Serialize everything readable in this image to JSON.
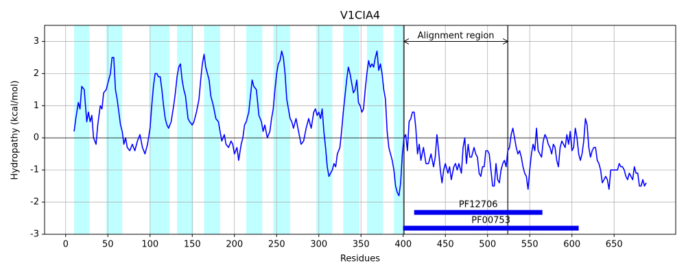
{
  "chart_data": {
    "type": "line",
    "title": "V1CIA4",
    "xlabel": "Residues",
    "ylabel": "Hydropathy (kcal/mol)",
    "x": [
      10,
      12,
      15,
      17,
      19,
      22,
      25,
      27,
      29,
      31,
      33,
      36,
      38,
      41,
      43,
      45,
      48,
      50,
      53,
      55,
      57,
      59,
      61,
      63,
      65,
      67,
      69,
      71,
      73,
      76,
      79,
      82,
      85,
      88,
      91,
      94,
      97,
      100,
      102,
      104,
      106,
      108,
      110,
      112,
      114,
      116,
      118,
      120,
      122,
      125,
      128,
      130,
      132,
      134,
      136,
      138,
      140,
      142,
      145,
      147,
      150,
      152,
      155,
      158,
      160,
      162,
      164,
      166,
      168,
      170,
      172,
      175,
      178,
      181,
      183,
      185,
      188,
      190,
      193,
      196,
      198,
      200,
      203,
      205,
      208,
      210,
      212,
      214,
      217,
      219,
      221,
      223,
      226,
      229,
      232,
      234,
      236,
      239,
      242,
      244,
      246,
      248,
      250,
      252,
      254,
      256,
      258,
      260,
      262,
      264,
      266,
      268,
      270,
      273,
      276,
      279,
      282,
      285,
      288,
      291,
      294,
      296,
      298,
      300,
      302,
      304,
      306,
      308,
      310,
      312,
      314,
      316,
      318,
      320,
      322,
      325,
      327,
      329,
      331,
      333,
      335,
      337,
      339,
      341,
      343,
      345,
      347,
      349,
      351,
      353,
      355,
      357,
      359,
      361,
      363,
      365,
      367,
      369,
      371,
      373,
      375,
      377,
      379,
      381,
      383,
      385,
      387,
      389,
      391,
      393,
      395,
      397,
      399,
      401,
      403,
      405,
      407,
      409,
      411,
      413,
      415,
      417,
      419,
      421,
      424,
      427,
      430,
      433,
      436,
      438,
      440,
      442,
      444,
      446,
      448,
      450,
      453,
      455,
      457,
      460,
      462,
      464,
      466,
      469,
      471,
      473,
      475,
      477,
      479,
      481,
      484,
      486,
      488,
      490,
      492,
      494,
      496,
      498,
      500,
      502,
      504,
      506,
      508,
      510,
      512,
      514,
      516,
      518,
      520,
      522,
      524,
      526,
      528,
      530,
      532,
      534,
      536,
      538,
      540,
      542,
      544,
      546,
      548,
      550,
      552,
      554,
      556,
      558,
      560,
      562,
      564,
      566,
      568,
      570,
      572,
      574,
      576,
      578,
      580,
      582,
      584,
      586,
      588,
      590,
      592,
      594,
      596,
      598,
      600,
      602,
      604,
      606,
      608,
      610,
      612,
      614,
      616,
      618,
      620,
      622,
      624,
      626,
      628,
      630,
      632,
      634,
      636,
      638,
      640,
      642,
      644,
      646,
      648,
      650,
      652,
      654,
      656,
      658,
      660,
      662,
      664,
      666,
      668,
      670,
      672,
      674,
      676,
      678,
      680,
      682,
      684,
      686,
      688
    ],
    "series": [
      {
        "name": "Hydropathy",
        "color": "#0000ff",
        "values": [
          0.2,
          0.6,
          1.1,
          0.9,
          1.6,
          1.5,
          0.5,
          0.8,
          0.5,
          0.7,
          0.0,
          -0.2,
          0.4,
          1.0,
          0.9,
          1.4,
          1.5,
          1.7,
          2.0,
          2.5,
          2.5,
          1.5,
          1.2,
          0.8,
          0.4,
          0.2,
          -0.2,
          0.0,
          -0.3,
          -0.4,
          -0.2,
          -0.4,
          -0.1,
          0.1,
          -0.3,
          -0.5,
          -0.2,
          0.3,
          1.0,
          1.6,
          2.0,
          2.0,
          1.9,
          1.9,
          1.5,
          1.0,
          0.6,
          0.4,
          0.3,
          0.5,
          1.0,
          1.4,
          1.9,
          2.2,
          2.3,
          1.8,
          1.5,
          1.3,
          0.6,
          0.5,
          0.4,
          0.5,
          0.8,
          1.2,
          1.8,
          2.3,
          2.6,
          2.2,
          2.0,
          1.8,
          1.3,
          1.0,
          0.6,
          0.5,
          0.2,
          -0.1,
          0.1,
          -0.2,
          -0.3,
          -0.1,
          -0.2,
          -0.5,
          -0.3,
          -0.7,
          -0.2,
          0.0,
          0.4,
          0.5,
          0.8,
          1.3,
          1.8,
          1.6,
          1.5,
          0.7,
          0.5,
          0.2,
          0.4,
          0.0,
          0.2,
          0.6,
          0.9,
          1.5,
          2.0,
          2.3,
          2.4,
          2.7,
          2.5,
          2.0,
          1.2,
          0.9,
          0.6,
          0.5,
          0.3,
          0.6,
          0.2,
          -0.2,
          -0.1,
          0.3,
          0.6,
          0.3,
          0.8,
          0.9,
          0.7,
          0.8,
          0.6,
          0.9,
          0.2,
          -0.3,
          -0.9,
          -1.2,
          -1.1,
          -1.0,
          -0.8,
          -0.9,
          -0.5,
          -0.3,
          0.2,
          0.8,
          1.3,
          1.8,
          2.2,
          2.0,
          1.7,
          1.4,
          1.5,
          1.8,
          1.1,
          1.0,
          0.8,
          0.9,
          1.5,
          2.0,
          2.4,
          2.2,
          2.3,
          2.2,
          2.5,
          2.7,
          2.1,
          2.3,
          2.0,
          1.5,
          1.2,
          0.2,
          -0.3,
          -0.5,
          -0.7,
          -1.0,
          -1.5,
          -1.7,
          -1.8,
          -1.4,
          -0.5,
          0.0,
          0.1,
          -0.4,
          0.5,
          0.6,
          0.8,
          0.8,
          0.3,
          -0.5,
          -0.2,
          -0.7,
          -0.3,
          -0.8,
          -0.8,
          -0.5,
          -0.9,
          -0.6,
          0.1,
          -0.4,
          -1.0,
          -1.4,
          -1.0,
          -0.8,
          -1.1,
          -0.9,
          -1.3,
          -0.9,
          -0.8,
          -1.0,
          -0.8,
          -1.1,
          -0.3,
          0.0,
          -0.8,
          -0.2,
          -0.6,
          -0.6,
          -0.3,
          -0.5,
          -0.6,
          -1.1,
          -1.2,
          -0.9,
          -0.9,
          -0.4,
          -0.4,
          -0.5,
          -1.0,
          -1.5,
          -1.5,
          -0.8,
          -1.3,
          -1.4,
          -1.0,
          -0.8,
          -0.7,
          -0.9,
          -0.4,
          -0.3,
          0.1,
          0.3,
          0.0,
          -0.3,
          -0.5,
          -0.4,
          -0.6,
          -0.9,
          -1.1,
          -1.2,
          -1.6,
          -1.0,
          -0.5,
          -0.2,
          -0.4,
          0.3,
          -0.4,
          -0.5,
          -0.6,
          -0.1,
          0.1,
          0.0,
          -0.2,
          -0.3,
          -0.5,
          -0.2,
          -0.3,
          -0.7,
          -0.9,
          -0.3,
          -0.1,
          -0.2,
          -0.3,
          0.1,
          -0.2,
          0.2,
          -0.4,
          -0.3,
          0.3,
          0.0,
          -0.5,
          -0.7,
          -0.5,
          -0.1,
          0.6,
          0.4,
          -0.3,
          -0.6,
          -0.4,
          -0.3,
          -0.3,
          -0.7,
          -0.8,
          -1.0,
          -1.4,
          -1.3,
          -1.2,
          -1.3,
          -1.6,
          -1.0,
          -1.0,
          -1.0,
          -1.0,
          -1.0,
          -0.8,
          -0.9,
          -0.9,
          -1.0,
          -1.2,
          -1.3,
          -1.1,
          -1.2,
          -1.3,
          -0.9,
          -1.1,
          -1.1,
          -1.5,
          -1.5,
          -1.3,
          -1.5,
          -1.4
        ]
      }
    ],
    "highlight_regions": [
      [
        10,
        28
      ],
      [
        48,
        67
      ],
      [
        100,
        123
      ],
      [
        132,
        151
      ],
      [
        164,
        183
      ],
      [
        214,
        233
      ],
      [
        246,
        266
      ],
      [
        297,
        316
      ],
      [
        329,
        348
      ],
      [
        357,
        376
      ],
      [
        389,
        401
      ]
    ],
    "highlight_color": "#bfffff",
    "vlines": [
      401,
      524
    ],
    "hline": 0,
    "annotation": {
      "text": "Alignment region",
      "start": 401,
      "end": 524,
      "y": 3
    },
    "domains": [
      {
        "name": "PF12706",
        "start": 413,
        "end": 565,
        "y": -2.32,
        "color": "#0000ee"
      },
      {
        "name": "PF00753",
        "start": 400,
        "end": 608,
        "y": -2.81,
        "color": "#0000ee"
      }
    ],
    "xlim": [
      -25,
      723
    ],
    "ylim": [
      -3,
      3.5
    ],
    "xticks": [
      0,
      50,
      100,
      150,
      200,
      250,
      300,
      350,
      400,
      450,
      500,
      550,
      600,
      650
    ],
    "yticks": [
      -3,
      -2,
      -1,
      0,
      1,
      2,
      3
    ],
    "grid": true
  }
}
